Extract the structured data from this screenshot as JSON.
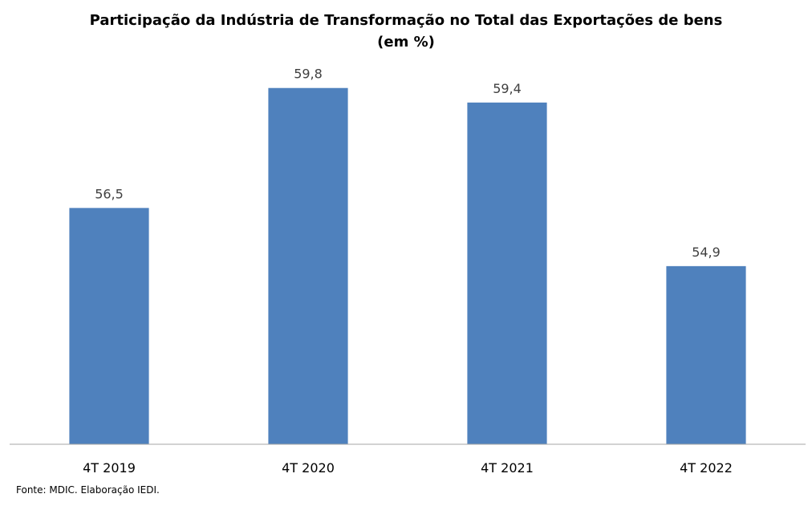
{
  "chart_data": {
    "type": "bar",
    "title": "Participação da Indústria de Transformação no Total das Exportações de bens",
    "subtitle": "(em %)",
    "categories": [
      "4T 2019",
      "4T 2020",
      "4T 2021",
      "4T 2022"
    ],
    "values": [
      56.5,
      59.8,
      59.4,
      54.9
    ],
    "value_labels": [
      "56,5",
      "59,8",
      "59,4",
      "54,9"
    ],
    "xlabel": "",
    "ylabel": "",
    "ylim": [
      50,
      60.5
    ],
    "grid": false,
    "legend": "none",
    "bar_color": "#4F81BD"
  },
  "source": "Fonte: MDIC. Elaboração IEDI."
}
